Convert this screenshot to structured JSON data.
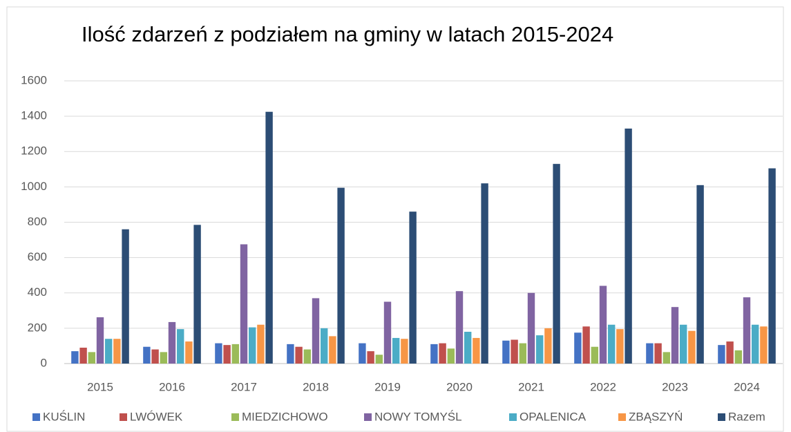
{
  "chart_data": {
    "type": "bar",
    "title": "Ilość zdarzeń z podziałem na gminy w latach 2015-2024",
    "categories": [
      "2015",
      "2016",
      "2017",
      "2018",
      "2019",
      "2020",
      "2021",
      "2022",
      "2023",
      "2024"
    ],
    "series": [
      {
        "name": "KUŚLIN",
        "color": "#4472c4",
        "values": [
          70,
          95,
          115,
          110,
          115,
          110,
          130,
          175,
          115,
          105
        ]
      },
      {
        "name": "LWÓWEK",
        "color": "#c0504d",
        "values": [
          90,
          80,
          105,
          95,
          70,
          115,
          135,
          210,
          115,
          125
        ]
      },
      {
        "name": "MIEDZICHOWO",
        "color": "#9bbb59",
        "values": [
          65,
          65,
          110,
          80,
          50,
          85,
          115,
          95,
          65,
          75
        ]
      },
      {
        "name": "NOWY TOMYŚL",
        "color": "#8064a2",
        "values": [
          262,
          235,
          675,
          370,
          350,
          410,
          400,
          440,
          320,
          375
        ]
      },
      {
        "name": "OPALENICA",
        "color": "#4bacc6",
        "values": [
          140,
          195,
          205,
          200,
          145,
          180,
          160,
          220,
          220,
          220
        ]
      },
      {
        "name": "ZBĄSZYŃ",
        "color": "#f79646",
        "values": [
          140,
          125,
          220,
          155,
          140,
          145,
          200,
          195,
          185,
          210
        ]
      },
      {
        "name": "Razem",
        "color": "#2c4d75",
        "values": [
          760,
          785,
          1425,
          995,
          860,
          1020,
          1130,
          1330,
          1010,
          1105
        ]
      }
    ],
    "ylim": [
      0,
      1600
    ],
    "yticks": [
      0,
      200,
      400,
      600,
      800,
      1000,
      1200,
      1400,
      1600
    ],
    "grid": true,
    "legend": "bottom"
  }
}
